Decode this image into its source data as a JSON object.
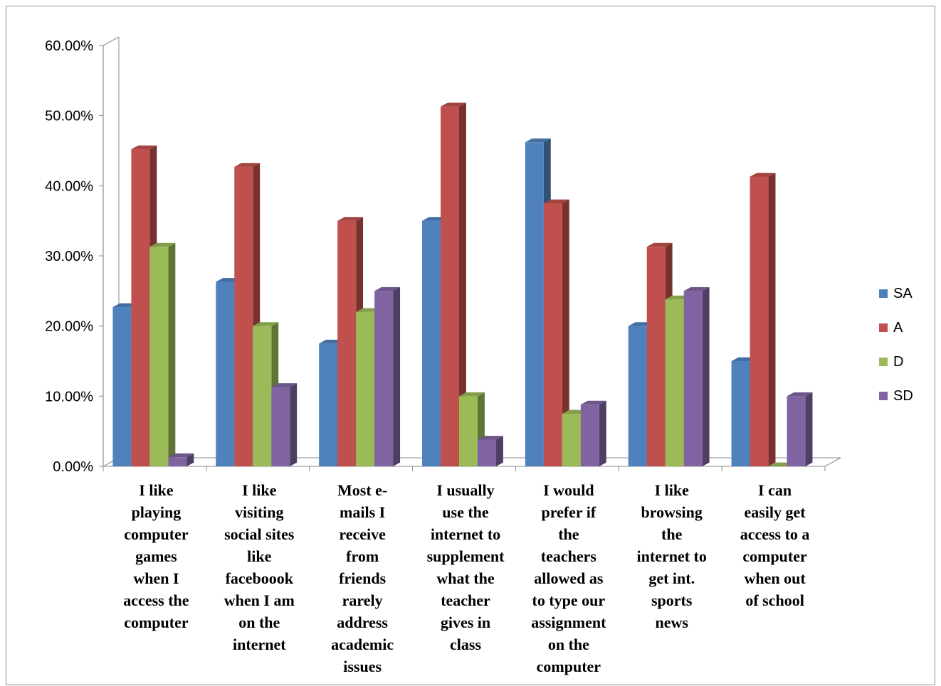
{
  "chart_data": {
    "type": "bar",
    "style": "3d-clustered-column",
    "title": "",
    "xlabel": "",
    "ylabel": "",
    "ylim": [
      0,
      0.6
    ],
    "ytick_values": [
      0,
      0.1,
      0.2,
      0.3,
      0.4,
      0.5,
      0.6
    ],
    "ytick_labels": [
      "0.00%",
      "10.00%",
      "20.00%",
      "30.00%",
      "40.00%",
      "50.00%",
      "60.00%"
    ],
    "grid": false,
    "legend_position": "right",
    "categories": [
      [
        "I like",
        "playing",
        "computer",
        "games",
        "when I",
        "access  the",
        "computer"
      ],
      [
        "I like",
        "visiting",
        "social sites",
        "like",
        "faceboook",
        "when I am",
        "on the",
        "internet"
      ],
      [
        "Most e-",
        "mails  I",
        "receive",
        "from",
        "friends",
        "rarely",
        "address",
        "academic",
        "issues"
      ],
      [
        "I usually",
        "use the",
        "internet to",
        "supplement",
        "what the",
        "teacher",
        "gives  in",
        "class"
      ],
      [
        "I would",
        "prefer if",
        "the",
        "teachers",
        "allowed as",
        "to type our",
        "assignment",
        "on the",
        "computer"
      ],
      [
        "I like",
        "browsing",
        "the",
        "internet  to",
        "get int.",
        "sports",
        "news"
      ],
      [
        "I can",
        "easily  get",
        "access to a",
        "computer",
        "when out",
        "of school"
      ]
    ],
    "series": [
      {
        "name": "SA",
        "color": "#4f81bd",
        "values": [
          0.227,
          0.263,
          0.175,
          0.35,
          0.462,
          0.2,
          0.15
        ]
      },
      {
        "name": "A",
        "color": "#c0504d",
        "values": [
          0.452,
          0.427,
          0.35,
          0.513,
          0.375,
          0.313,
          0.413
        ]
      },
      {
        "name": "D",
        "color": "#9bbb59",
        "values": [
          0.313,
          0.2,
          0.22,
          0.1,
          0.075,
          0.238,
          0.0
        ]
      },
      {
        "name": "SD",
        "color": "#8064a2",
        "values": [
          0.013,
          0.113,
          0.25,
          0.038,
          0.088,
          0.25,
          0.1
        ]
      }
    ]
  }
}
